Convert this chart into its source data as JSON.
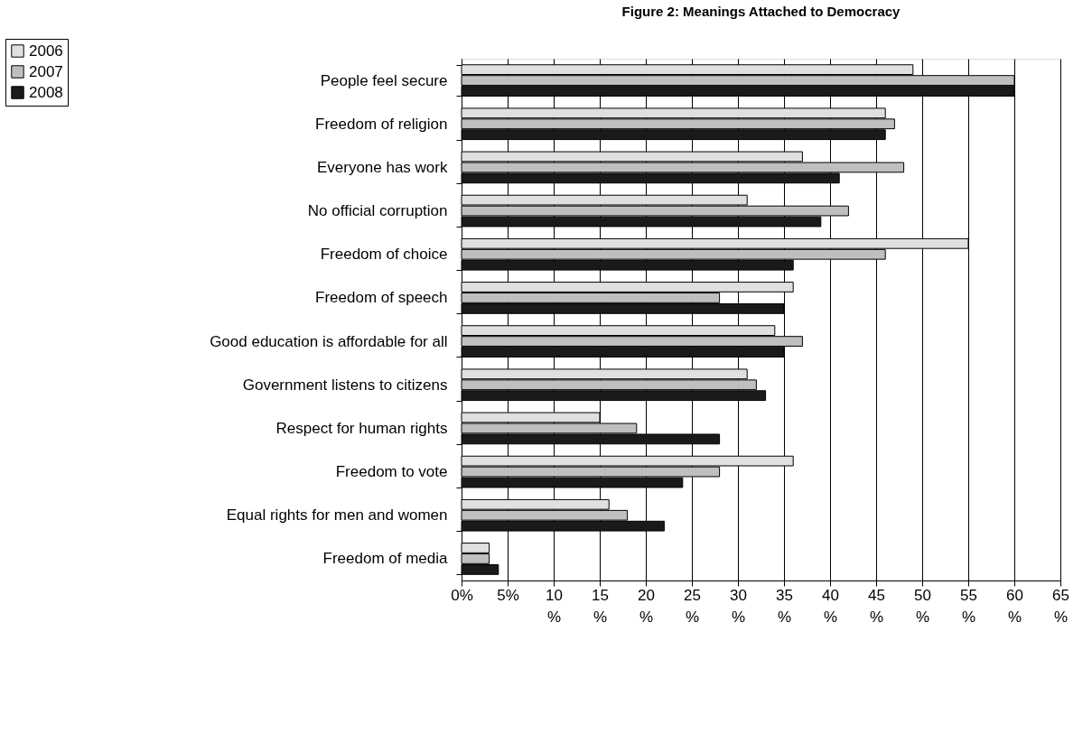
{
  "chart_data": {
    "type": "bar",
    "orientation": "horizontal",
    "title": "Figure 2: Meanings Attached to Democracy",
    "categories": [
      "People feel secure",
      "Freedom of religion",
      "Everyone has work",
      "No official corruption",
      "Freedom of choice",
      "Freedom of speech",
      "Good education is affordable for all",
      "Government listens to citizens",
      "Respect for human rights",
      "Freedom to vote",
      "Equal rights for men and women",
      "Freedom of media"
    ],
    "series": [
      {
        "name": "2006",
        "color": "#e0e0e0",
        "values": [
          49,
          46,
          37,
          31,
          55,
          36,
          34,
          31,
          15,
          36,
          16,
          3
        ]
      },
      {
        "name": "2007",
        "color": "#bfbfbf",
        "values": [
          60,
          47,
          48,
          42,
          46,
          28,
          37,
          32,
          19,
          28,
          18,
          3
        ]
      },
      {
        "name": "2008",
        "color": "#1a1a1a",
        "values": [
          60,
          46,
          41,
          39,
          36,
          35,
          35,
          33,
          28,
          24,
          22,
          4
        ]
      }
    ],
    "xlim": [
      0,
      65
    ],
    "xticks": [
      {
        "value": 0,
        "label": "0%"
      },
      {
        "value": 5,
        "label": "5%"
      },
      {
        "value": 10,
        "label": "10 %"
      },
      {
        "value": 15,
        "label": "15 %"
      },
      {
        "value": 20,
        "label": "20 %"
      },
      {
        "value": 25,
        "label": "25 %"
      },
      {
        "value": 30,
        "label": "30 %"
      },
      {
        "value": 35,
        "label": "35 %"
      },
      {
        "value": 40,
        "label": "40 %"
      },
      {
        "value": 45,
        "label": "45 %"
      },
      {
        "value": 50,
        "label": "50 %"
      },
      {
        "value": 55,
        "label": "55 %"
      },
      {
        "value": 60,
        "label": "60 %"
      },
      {
        "value": 65,
        "label": "65 %"
      }
    ],
    "grid": "x",
    "legend": "top left"
  }
}
